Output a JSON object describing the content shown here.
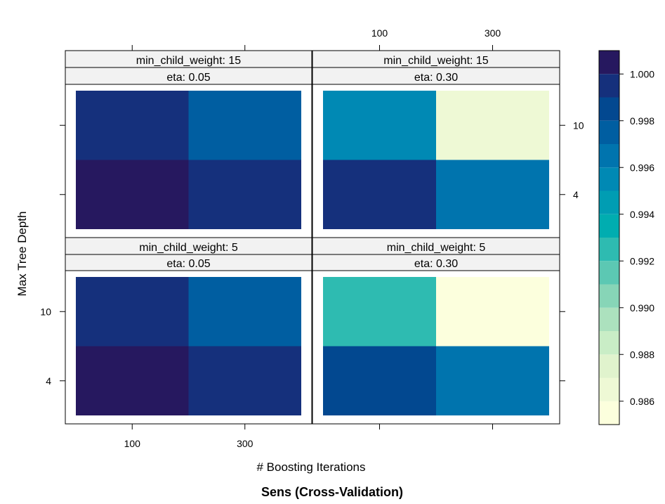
{
  "chart_data": {
    "type": "heatmap",
    "title": "Sens (Cross-Validation)",
    "xlabel": "# Boosting Iterations",
    "ylabel": "Max Tree Depth",
    "x_categories": [
      "100",
      "300"
    ],
    "y_categories": [
      "4",
      "10"
    ],
    "panels": [
      {
        "strips": [
          "min_child_weight: 15",
          "eta: 0.05"
        ],
        "values": [
          [
            1.0006,
            0.9991
          ],
          [
            0.9991,
            0.9979
          ]
        ]
      },
      {
        "strips": [
          "min_child_weight: 15",
          "eta: 0.30"
        ],
        "values": [
          [
            0.9991,
            0.9969
          ],
          [
            0.9951,
            0.9862
          ]
        ]
      },
      {
        "strips": [
          "min_child_weight:  5",
          "eta: 0.05"
        ],
        "values": [
          [
            1.0006,
            0.9991
          ],
          [
            0.9991,
            0.9979
          ]
        ]
      },
      {
        "strips": [
          "min_child_weight:  5",
          "eta: 0.30"
        ],
        "values": [
          [
            0.9981,
            0.9969
          ],
          [
            0.9928,
            0.9853
          ]
        ]
      }
    ],
    "colorbar": {
      "range": [
        0.985,
        1.001
      ],
      "tick_labels": [
        "0.986",
        "0.988",
        "0.990",
        "0.992",
        "0.994",
        "0.996",
        "0.998",
        "1.000"
      ],
      "colors": [
        "#FCFFDD",
        "#EEF9D5",
        "#E0F3CD",
        "#C9EDC6",
        "#ACE1BE",
        "#87D5B7",
        "#5CC8B3",
        "#2EBBB1",
        "#00ADB0",
        "#009DB3",
        "#0089B4",
        "#0074AE",
        "#005EA1",
        "#024890",
        "#15307C",
        "#26185F"
      ]
    }
  }
}
